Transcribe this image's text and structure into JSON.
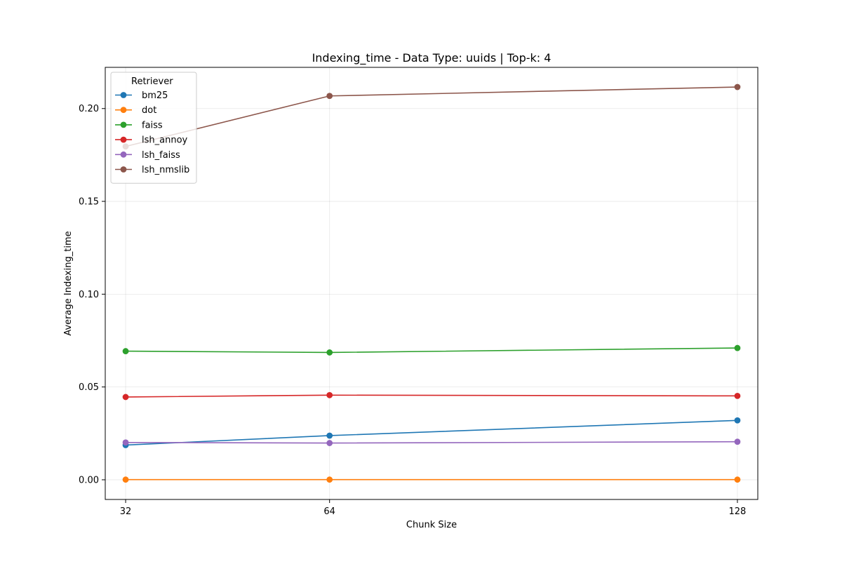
{
  "chart_data": {
    "type": "line",
    "title": "Indexing_time - Data Type: uuids | Top-k: 4",
    "xlabel": "Chunk Size",
    "ylabel": "Average Indexing_time",
    "x": [
      32,
      64,
      128
    ],
    "x_ticks": [
      "32",
      "64",
      "128"
    ],
    "y_ticks": [
      "0.00",
      "0.05",
      "0.10",
      "0.15",
      "0.20"
    ],
    "y_tick_values": [
      0.0,
      0.05,
      0.1,
      0.15,
      0.2
    ],
    "xlim": [
      28.8,
      131.2
    ],
    "ylim": [
      -0.0106,
      0.2222
    ],
    "grid": true,
    "legend": {
      "title": "Retriever",
      "placement": "top-left"
    },
    "series": [
      {
        "name": "bm25",
        "color": "#1f77b4",
        "values": [
          0.0187,
          0.0238,
          0.032
        ]
      },
      {
        "name": "dot",
        "color": "#ff7f0e",
        "values": [
          0.0001,
          0.0001,
          0.0001
        ]
      },
      {
        "name": "faiss",
        "color": "#2ca02c",
        "values": [
          0.0693,
          0.0686,
          0.071
        ]
      },
      {
        "name": "lsh_annoy",
        "color": "#d62728",
        "values": [
          0.0446,
          0.0456,
          0.0452
        ]
      },
      {
        "name": "lsh_faiss",
        "color": "#9467bd",
        "values": [
          0.0201,
          0.0198,
          0.0205
        ]
      },
      {
        "name": "lsh_nmslib",
        "color": "#8c564b",
        "values": [
          0.1796,
          0.2068,
          0.2116
        ]
      }
    ]
  }
}
